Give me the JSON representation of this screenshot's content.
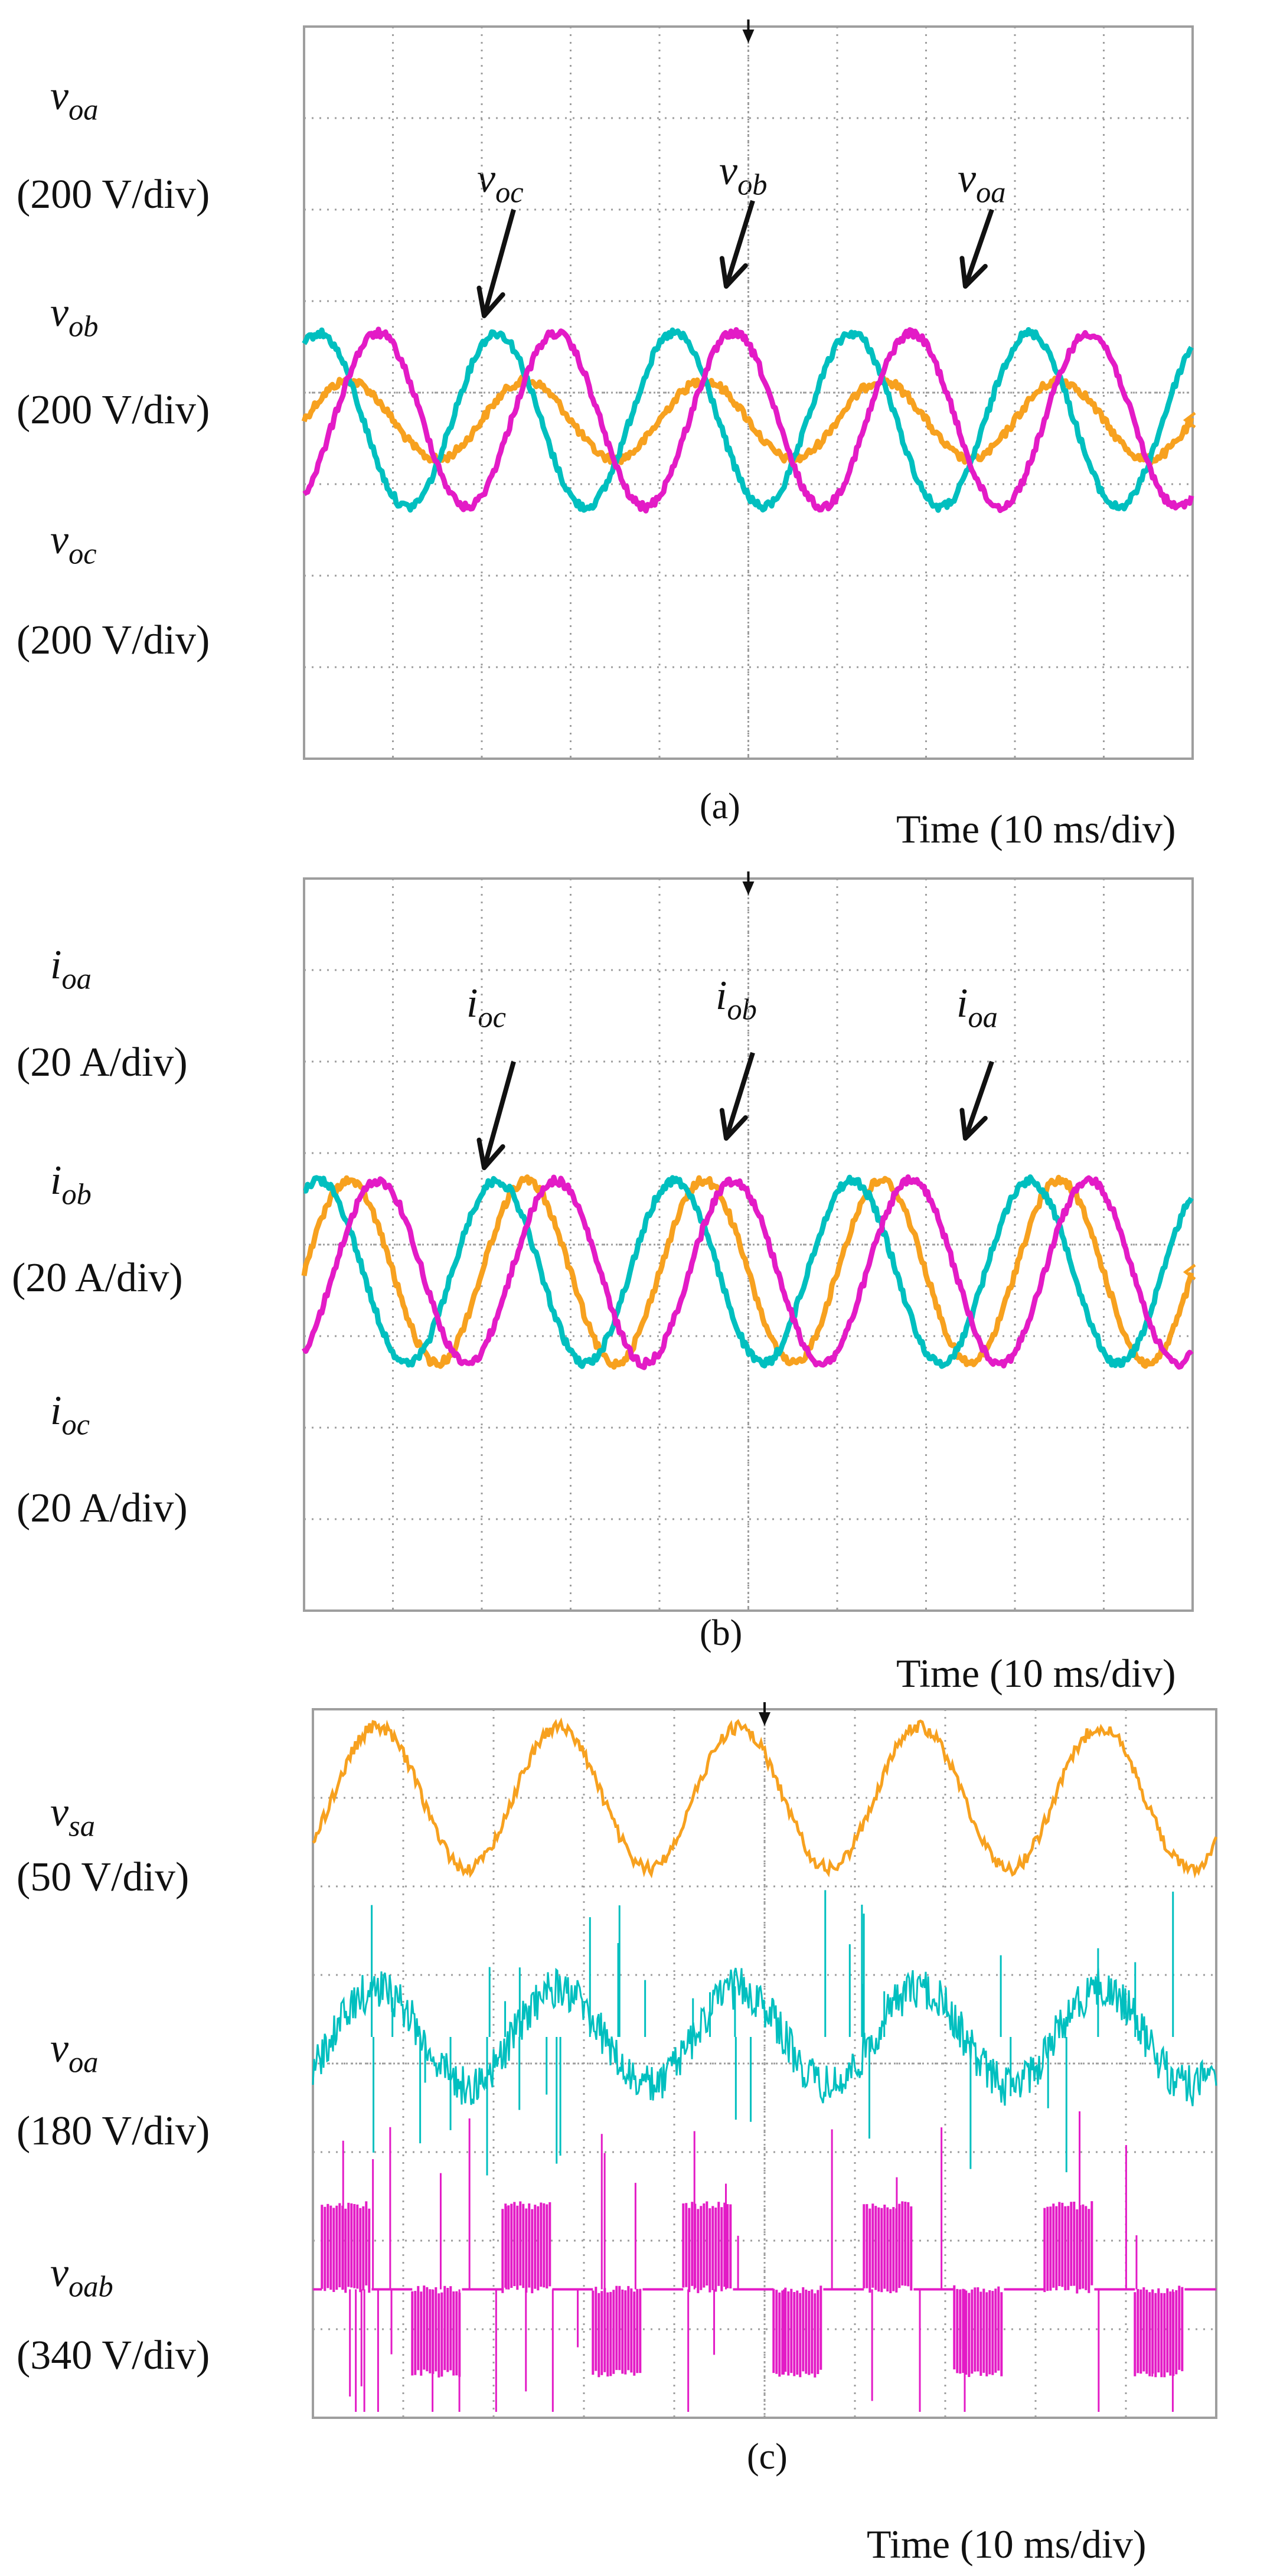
{
  "colors": {
    "phase_a": "#f7a11f",
    "phase_b": "#00bfbf",
    "phase_c": "#e31bc6",
    "grid": "#9e9e9e"
  },
  "time_label": "Time (10 ms/div)",
  "chart_data": [
    {
      "type": "line",
      "caption": "(a)",
      "x_per_div": "10 ms/div",
      "grid": true,
      "channels": [
        {
          "sub": "oa",
          "scale": "(200 V/div)",
          "color": "#f7a11f"
        },
        {
          "sub": "ob",
          "scale": "(200 V/div)",
          "color": "#00bfbf"
        },
        {
          "sub": "oc",
          "scale": "(200 V/div)",
          "color": "#e31bc6"
        }
      ],
      "annotations": [
        {
          "prefix": "v",
          "sub": "oc",
          "points_to": "phase_c"
        },
        {
          "prefix": "v",
          "sub": "ob",
          "points_to": "phase_b"
        },
        {
          "prefix": "v",
          "sub": "oa",
          "points_to": "phase_c"
        }
      ],
      "label_prefix": "v",
      "series": [
        {
          "name": "v_oa",
          "color": "#f7a11f",
          "amplitude_div": 0.43,
          "center_div": 4.3,
          "frequency_hz": 50
        },
        {
          "name": "v_ob",
          "color": "#00bfbf",
          "amplitude_div": 0.95,
          "center_div": 4.3,
          "frequency_hz": 50
        },
        {
          "name": "v_oc",
          "color": "#e31bc6",
          "amplitude_div": 0.95,
          "center_div": 4.3,
          "frequency_hz": 50
        }
      ]
    },
    {
      "type": "line",
      "caption": "(b)",
      "x_per_div": "10 ms/div",
      "grid": true,
      "channels": [
        {
          "sub": "oa",
          "scale": "(20 A/div)",
          "color": "#f7a11f"
        },
        {
          "sub": "ob",
          "scale": "(20 A/div)",
          "color": "#00bfbf"
        },
        {
          "sub": "oc",
          "scale": "(20 A/div)",
          "color": "#e31bc6"
        }
      ],
      "annotations": [
        {
          "prefix": "i",
          "sub": "oc",
          "points_to": "phase_a"
        },
        {
          "prefix": "i",
          "sub": "ob",
          "points_to": "phase_b"
        },
        {
          "prefix": "i",
          "sub": "oa",
          "points_to": "phase_c"
        }
      ],
      "label_prefix": "i",
      "series": [
        {
          "name": "i_oa",
          "color": "#f7a11f",
          "amplitude_div": 1.0,
          "center_div": 4.3,
          "frequency_hz": 50
        },
        {
          "name": "i_ob",
          "color": "#00bfbf",
          "amplitude_div": 1.0,
          "center_div": 4.3,
          "frequency_hz": 50
        },
        {
          "name": "i_oc",
          "color": "#e31bc6",
          "amplitude_div": 1.0,
          "center_div": 4.3,
          "frequency_hz": 50
        }
      ]
    },
    {
      "type": "line",
      "caption": "(c)",
      "x_per_div": "10 ms/div",
      "grid": true,
      "channels": [
        {
          "prefix": "v",
          "sub": "sa",
          "scale": "(50 V/div)",
          "color": "#f7a11f"
        },
        {
          "prefix": "v",
          "sub": "oa",
          "scale": "(180 V/div)",
          "color": "#00bfbf"
        },
        {
          "prefix": "v",
          "sub": "oab",
          "scale": "(340 V/div)",
          "color": "#e31bc6"
        }
      ],
      "series": [
        {
          "name": "v_sa",
          "color": "#f7a11f",
          "amplitude_div": 0.8,
          "center_div": 1.0,
          "frequency_hz": 50,
          "shape": "sine"
        },
        {
          "name": "v_oa",
          "color": "#00bfbf",
          "amplitude_div": 0.55,
          "center_div": 3.7,
          "frequency_hz": 50,
          "shape": "pwm-sine"
        },
        {
          "name": "v_oab",
          "color": "#e31bc6",
          "amplitude_div": 0.95,
          "center_div": 6.55,
          "frequency_hz": 50,
          "shape": "multilevel-pwm"
        }
      ]
    }
  ]
}
